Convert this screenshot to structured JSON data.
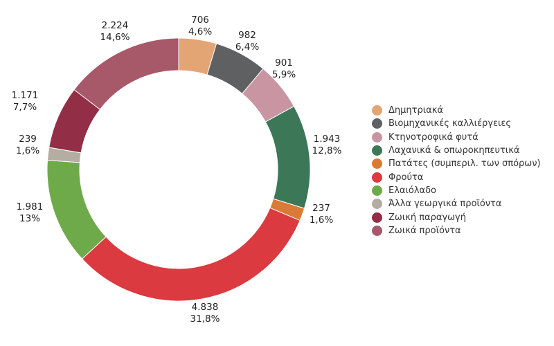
{
  "chart_data": {
    "type": "pie",
    "donut": true,
    "start": "top",
    "direction": "clockwise",
    "legend_position": "right",
    "slices": [
      {
        "label": "Δημητριακά",
        "value": 706,
        "value_label": "706",
        "pct_label": "4,6%",
        "color": "#E3A573"
      },
      {
        "label": "Βιομηχανικές καλλιέργειες",
        "value": 982,
        "value_label": "982",
        "pct_label": "6,4%",
        "color": "#5F6062"
      },
      {
        "label": "Κτηνοτροφικά φυτά",
        "value": 901,
        "value_label": "901",
        "pct_label": "5,9%",
        "color": "#C995A2"
      },
      {
        "label": "Λαχανικά & οπωροκηπευτικά",
        "value": 1943,
        "value_label": "1.943",
        "pct_label": "12,8%",
        "color": "#3C7858"
      },
      {
        "label": "Πατάτες (συμπεριλ. των σπόρων)",
        "value": 237,
        "value_label": "237",
        "pct_label": "1,6%",
        "color": "#D97B36"
      },
      {
        "label": "Φρούτα",
        "value": 4838,
        "value_label": "4.838",
        "pct_label": "31,8%",
        "color": "#DB3A40"
      },
      {
        "label": "Ελαιόλαδο",
        "value": 1981,
        "value_label": "1.981",
        "pct_label": "13%",
        "color": "#6FAA4A"
      },
      {
        "label": "Άλλα γεωργικά προϊόντα",
        "value": 239,
        "value_label": "239",
        "pct_label": "1,6%",
        "color": "#B3ADA2"
      },
      {
        "label": "Ζωική παραγωγή",
        "value": 1171,
        "value_label": "1.171",
        "pct_label": "7,7%",
        "color": "#922E45"
      },
      {
        "label": "Ζωικά προϊόντα",
        "value": 2224,
        "value_label": "2.224",
        "pct_label": "14,6%",
        "color": "#A75869"
      }
    ]
  }
}
